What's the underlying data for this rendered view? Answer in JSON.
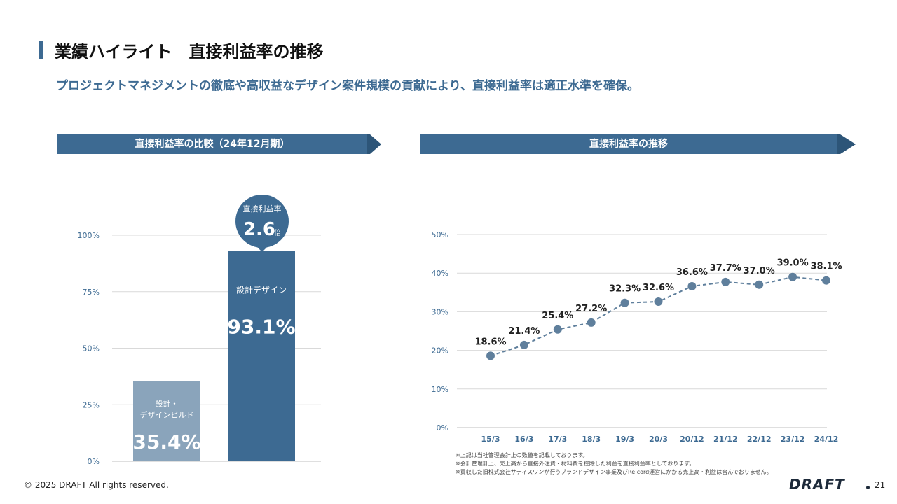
{
  "header": {
    "title": "業績ハイライト　直接利益率の推移",
    "subtitle": "プロジェクトマネジメントの徹底や高収益なデザイン案件規模の貢献により、直接利益率は適正水準を確保。"
  },
  "left_panel": {
    "banner": "直接利益率の比較（24年12月期）"
  },
  "right_panel": {
    "banner": "直接利益率の推移"
  },
  "callout": {
    "label": "直接利益率",
    "value": "2.6",
    "unit": "倍"
  },
  "notes": [
    "※上記は当社管理会計上の数値を記載しております。",
    "※会計管理計上、売上高から直接外注費・材料費を控除した利益を直接利益率としております。",
    "※買収した旧株式会社サティスワンが行うブランドデザイン事業及びRe cord運営にかかる売上高・利益は含んでおりません。"
  ],
  "footer": {
    "copyright": "© 2025 DRAFT All rights reserved.",
    "logo": "DRAFT",
    "page": "21"
  },
  "colors": {
    "accent": "#3d6a92",
    "bar_dark": "#3d6a92",
    "bar_light": "#8aa4bb",
    "grid": "#d9d9d9"
  },
  "chart_data": [
    {
      "type": "bar",
      "categories": [
        "設計・\nデザインビルド",
        "設計デザイン"
      ],
      "values": [
        35.4,
        93.1
      ],
      "value_labels": [
        "35.4%",
        "93.1%"
      ],
      "bar_labels": [
        [
          "設計・",
          "デザインビルド"
        ],
        [
          "設計デザイン"
        ]
      ],
      "ylim": [
        0,
        100
      ],
      "yticks": [
        "0%",
        "25%",
        "50%",
        "75%",
        "100%"
      ]
    },
    {
      "type": "line",
      "x": [
        "15/3",
        "16/3",
        "17/3",
        "18/3",
        "19/3",
        "20/3",
        "20/12",
        "21/12",
        "22/12",
        "23/12",
        "24/12"
      ],
      "values": [
        18.6,
        21.4,
        25.4,
        27.2,
        32.3,
        32.6,
        36.6,
        37.7,
        37.0,
        39.0,
        38.1
      ],
      "value_labels": [
        "18.6%",
        "21.4%",
        "25.4%",
        "27.2%",
        "32.3%",
        "32.6%",
        "36.6%",
        "37.7%",
        "37.0%",
        "39.0%",
        "38.1%"
      ],
      "ylim": [
        0,
        50
      ],
      "yticks": [
        "0%",
        "10%",
        "20%",
        "30%",
        "40%",
        "50%"
      ]
    }
  ]
}
